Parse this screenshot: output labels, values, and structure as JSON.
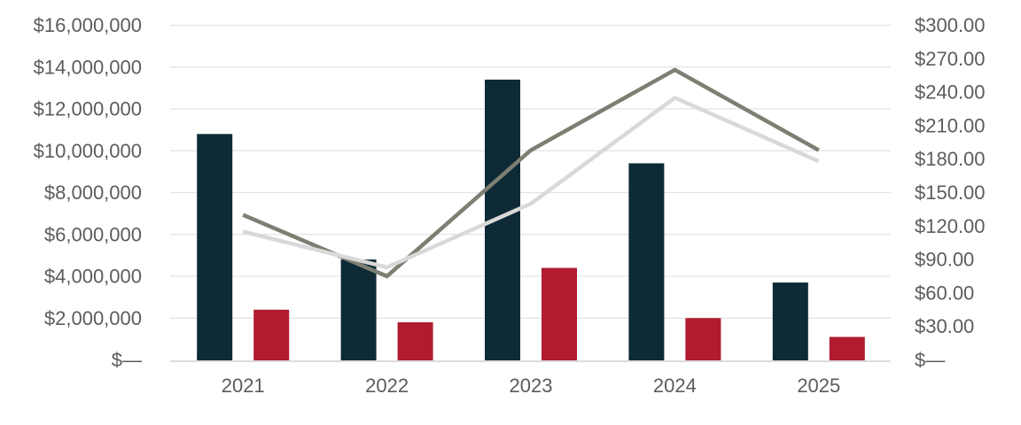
{
  "chart_data": {
    "type": "combo-bar-line",
    "title": "",
    "categories": [
      "2021",
      "2022",
      "2023",
      "2024",
      "2025"
    ],
    "series": [
      {
        "name": "navy-bars",
        "type": "bar",
        "axis": "left",
        "color": "#0d2a36",
        "values": [
          10800000,
          4800000,
          13400000,
          9400000,
          3700000
        ]
      },
      {
        "name": "red-bars",
        "type": "bar",
        "axis": "left",
        "color": "#b01b30",
        "values": [
          2400000,
          1800000,
          4400000,
          2000000,
          1100000
        ]
      },
      {
        "name": "dark-gray-line",
        "type": "line",
        "axis": "right",
        "color": "#7c7f71",
        "values": [
          130,
          75,
          188,
          260,
          188
        ]
      },
      {
        "name": "light-gray-line",
        "type": "line",
        "axis": "right",
        "color": "#dbd8d9",
        "values": [
          115,
          83,
          140,
          235,
          178
        ]
      }
    ],
    "left_axis": {
      "min": 0,
      "max": 16000000,
      "step": 2000000,
      "labels": [
        "$16,000,000",
        "$14,000,000",
        "$12,000,000",
        "$10,000,000",
        "$8,000,000",
        "$6,000,000",
        "$4,000,000",
        "$2,000,000",
        "$—"
      ]
    },
    "right_axis": {
      "min": 0,
      "max": 300,
      "step": 30,
      "labels": [
        "$300.00",
        "$270.00",
        "$240.00",
        "$210.00",
        "$180.00",
        "$150.00",
        "$120.00",
        "$90.00",
        "$60.00",
        "$30.00",
        "$—"
      ]
    },
    "grid": true,
    "legend": "none",
    "colors": {
      "gridline": "#e3e3e3",
      "baseline": "#dddcdc",
      "axis_text": "#5c5c5c",
      "background": "#ffffff"
    }
  }
}
